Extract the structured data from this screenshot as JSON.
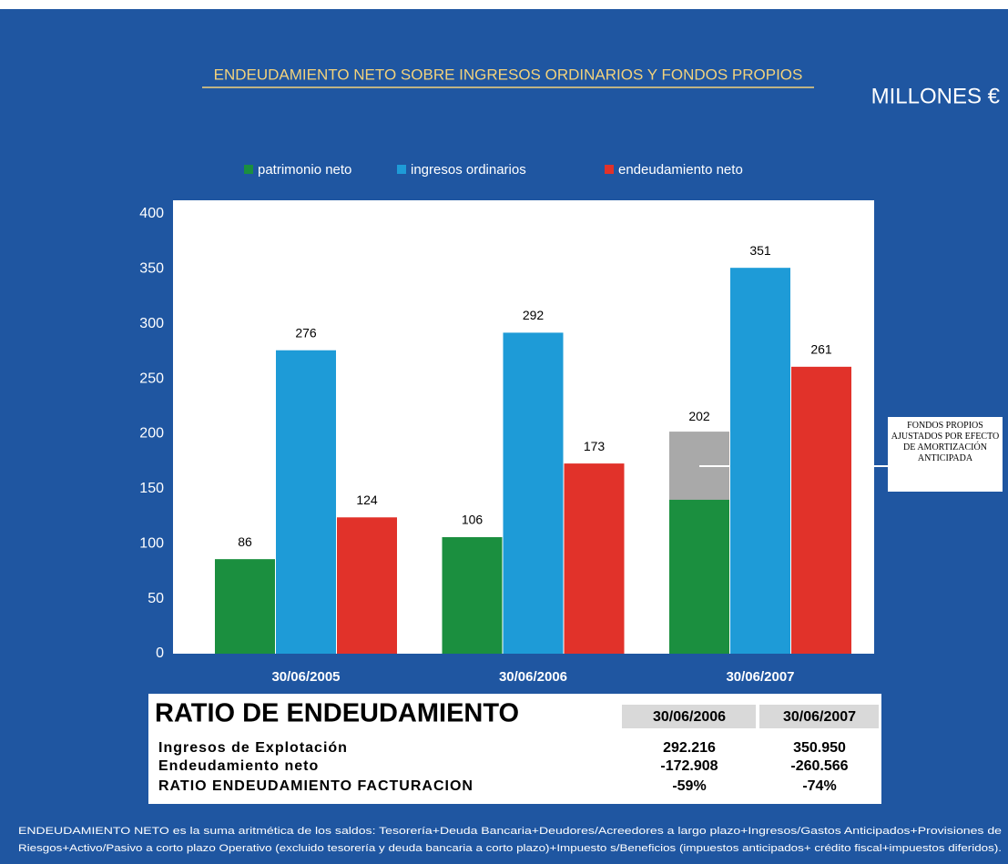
{
  "chart_data": {
    "type": "bar",
    "title": "ENDEUDAMIENTO NETO SOBRE INGRESOS ORDINARIOS Y FONDOS PROPIOS",
    "subtitle": "MILLONES €",
    "categories": [
      "30/06/2005",
      "30/06/2006",
      "30/06/2007"
    ],
    "series": [
      {
        "name": "patrimonio neto",
        "color": "#1b8f3f",
        "values": [
          86,
          106,
          140
        ],
        "value_labels": [
          "86",
          "106",
          null
        ]
      },
      {
        "name": "ingresos ordinarios",
        "color": "#1e9bd7",
        "values": [
          276,
          292,
          351
        ]
      },
      {
        "name": "endeudamiento neto",
        "color": "#e1322a",
        "values": [
          124,
          173,
          261
        ]
      }
    ],
    "adjusted": {
      "color": "#a9a9a9",
      "values": [
        null,
        null,
        202
      ]
    },
    "annotation": "FONDOS PROPIOS AJUSTADOS POR EFECTO DE AMORTIZACIÓN ANTICIPADA",
    "ylim": [
      0,
      400
    ],
    "yticks": [
      0,
      50,
      100,
      150,
      200,
      250,
      300,
      350,
      400
    ],
    "grid": false,
    "legend": "top"
  },
  "table": {
    "title": "RATIO DE ENDEUDAMIENTO",
    "columns": [
      "30/06/2006",
      "30/06/2007"
    ],
    "rows": [
      [
        "Ingresos de Explotación",
        "292.216",
        "350.950"
      ],
      [
        "Endeudamiento neto",
        "-172.908",
        "-260.566"
      ],
      [
        "RATIO ENDEUDAMIENTO FACTURACION",
        "-59%",
        "-74%"
      ]
    ]
  },
  "footnote": [
    "ENDEUDAMIENTO NETO es la suma aritmética de los saldos: Tesorería+Deuda Bancaria+Deudores/Acreedores a largo plazo+Ingresos/Gastos Anticipados+Provisiones de",
    "Riesgos+Activo/Pasivo a corto plazo Operativo (excluido tesorería y deuda bancaria a corto plazo)+Impuesto s/Beneficios (impuestos anticipados+ crédito fiscal+impuestos diferidos)."
  ]
}
